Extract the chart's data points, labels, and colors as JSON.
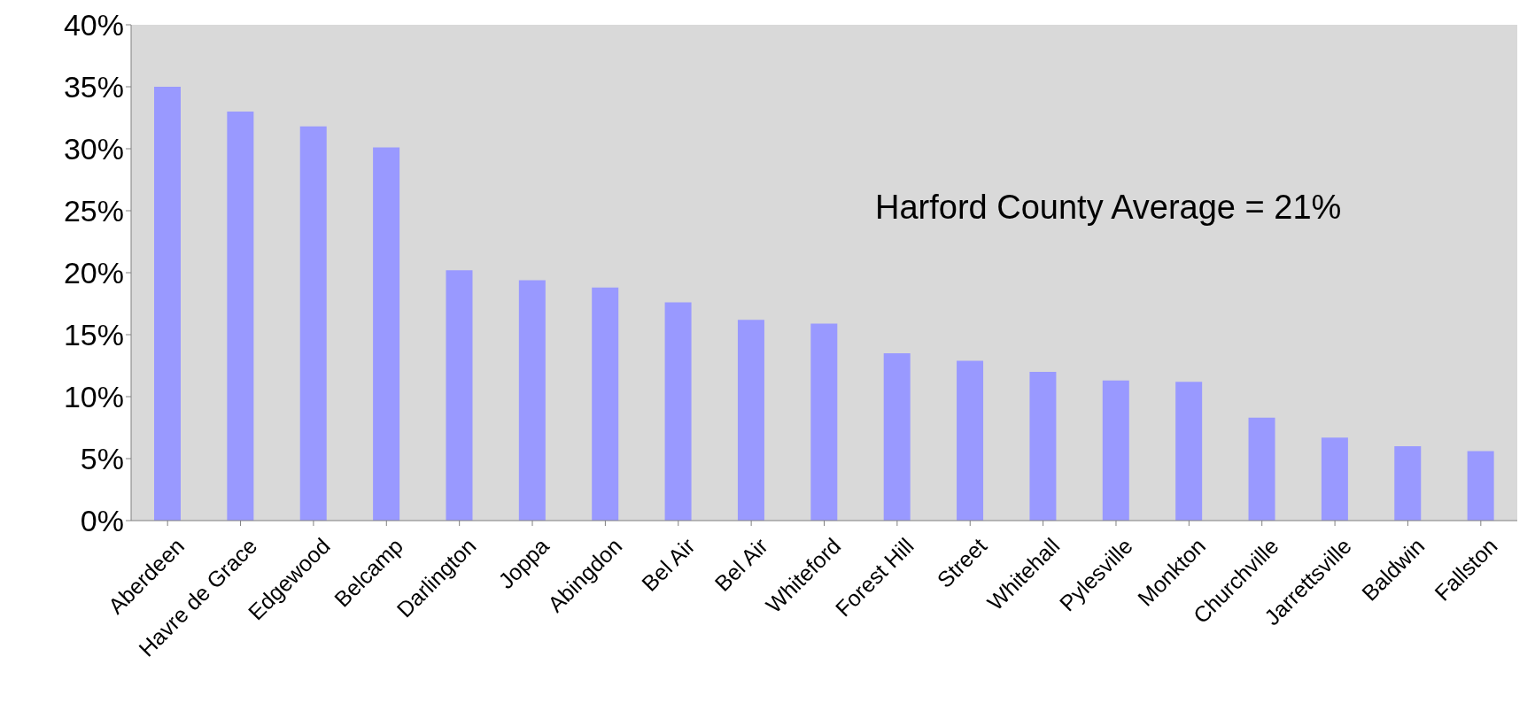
{
  "chart_data": {
    "type": "bar",
    "categories": [
      "Aberdeen",
      "Havre de Grace",
      "Edgewood",
      "Belcamp",
      "Darlington",
      "Joppa",
      "Abingdon",
      "Bel Air",
      "Bel Air",
      "Whiteford",
      "Forest Hill",
      "Street",
      "Whitehall",
      "Pylesville",
      "Monkton",
      "Churchville",
      "Jarrettsville",
      "Baldwin",
      "Fallston"
    ],
    "values": [
      35,
      33,
      31.8,
      30.1,
      20.2,
      19.4,
      18.8,
      17.6,
      16.2,
      15.9,
      13.5,
      12.9,
      12,
      11.3,
      11.2,
      8.3,
      6.7,
      6,
      5.6
    ],
    "color": "#9999ff",
    "ylim": [
      0,
      40
    ],
    "yticks": [
      {
        "value": 0,
        "label": "0%"
      },
      {
        "value": 5,
        "label": "5%"
      },
      {
        "value": 10,
        "label": "10%"
      },
      {
        "value": 15,
        "label": "15%"
      },
      {
        "value": 20,
        "label": "20%"
      },
      {
        "value": 25,
        "label": "25%"
      },
      {
        "value": 30,
        "label": "30%"
      },
      {
        "value": 35,
        "label": "35%"
      },
      {
        "value": 40,
        "label": "40%"
      }
    ],
    "grid": false,
    "legend": false,
    "annotations": [
      "Harford County Average = 21%"
    ]
  }
}
